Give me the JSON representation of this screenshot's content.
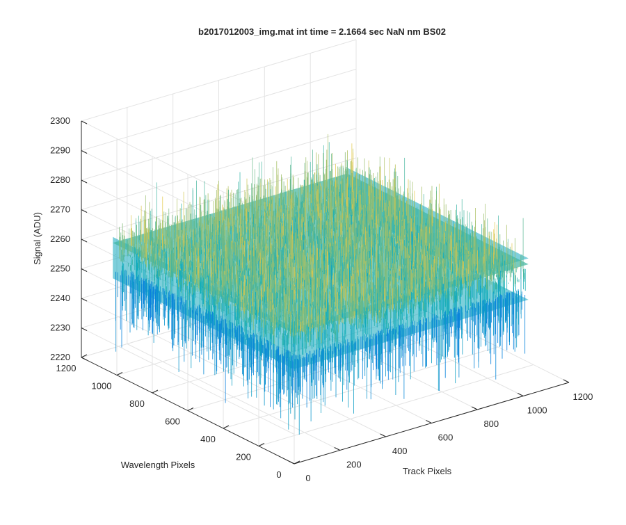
{
  "chart_data": {
    "type": "surface",
    "title": "b2017012003_img.mat int time = 2.1664 sec  NaN nm BS02",
    "xlabel": "Track Pixels",
    "ylabel": "Wavelength Pixels",
    "zlabel": "Signal (ADU)",
    "xlim": [
      0,
      1200
    ],
    "ylim": [
      0,
      1200
    ],
    "zlim": [
      2220,
      2300
    ],
    "xticks": [
      "0",
      "200",
      "400",
      "600",
      "800",
      "1000",
      "1200"
    ],
    "yticks": [
      "0",
      "200",
      "400",
      "600",
      "800",
      "1000",
      "1200"
    ],
    "zticks": [
      "2220",
      "2230",
      "2240",
      "2250",
      "2260",
      "2270",
      "2280",
      "2290",
      "2300"
    ],
    "surface": {
      "x_range": [
        1,
        1024
      ],
      "y_range": [
        1,
        1024
      ],
      "mean_signal": 2260,
      "noise_range": [
        2222,
        2285
      ],
      "colormap": "parula"
    },
    "grid": true
  },
  "colors": {
    "axis": "#262626",
    "grid": "#e3e3e3",
    "surface_low": "#0a7fe0",
    "surface_mid": "#14b0b8",
    "surface_high": "#e8c846"
  }
}
